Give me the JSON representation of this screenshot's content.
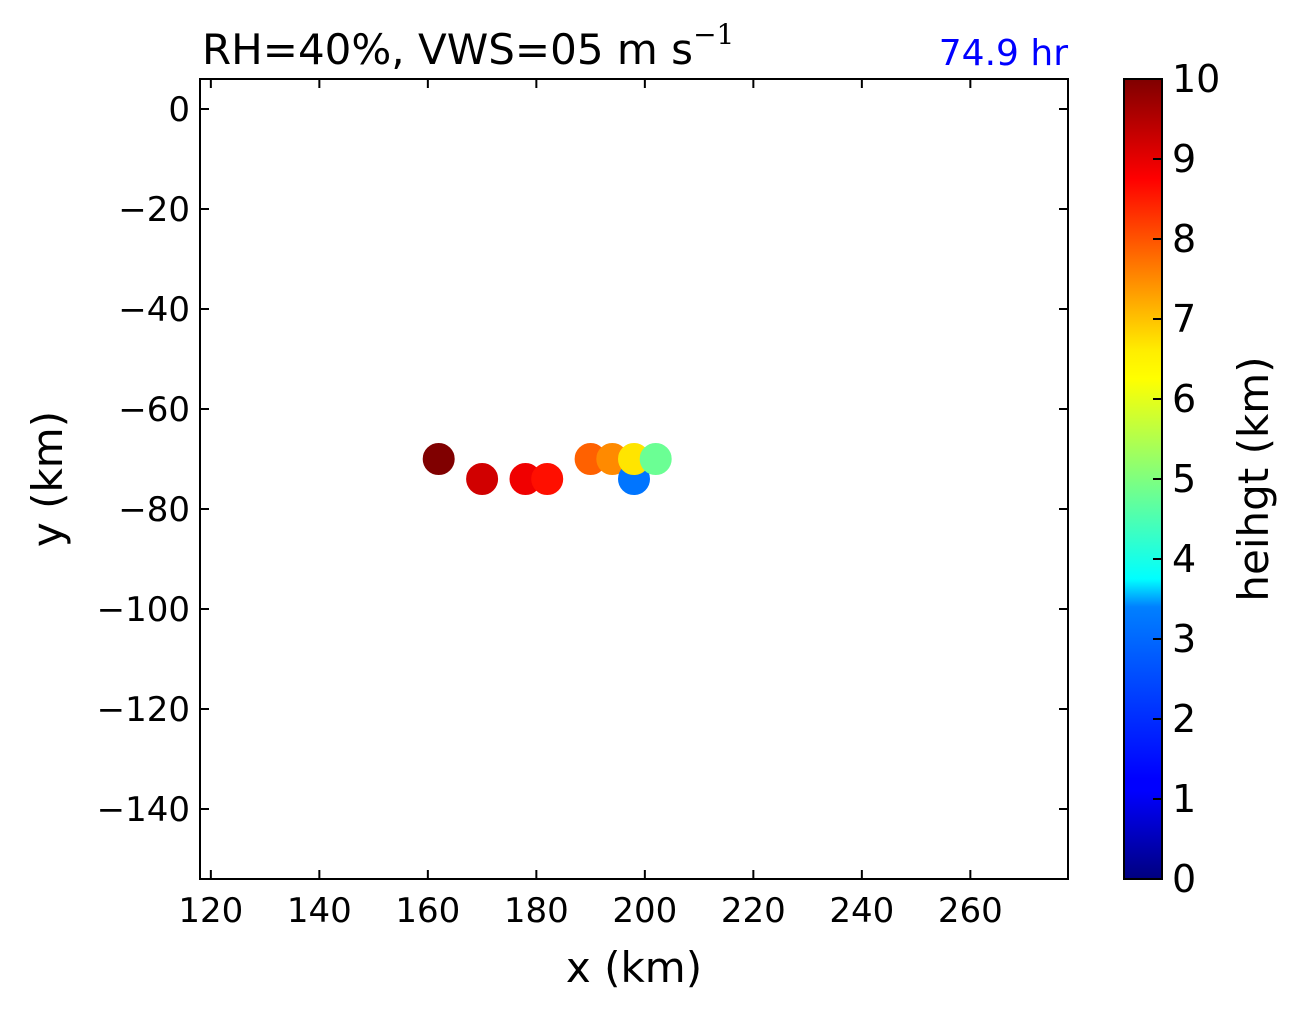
{
  "chart_data": {
    "type": "scatter",
    "title_main": "RH=40%, VWS=05 m s",
    "title_superscript": "−1",
    "time_label": "74.9 hr",
    "time_color": "#0000ff",
    "xlabel": "x (km)",
    "ylabel": "y (km)",
    "xlim": [
      118,
      278
    ],
    "ylim": [
      -154,
      6
    ],
    "xticks": [
      120,
      140,
      160,
      180,
      200,
      220,
      240,
      260
    ],
    "yticks": [
      0,
      -20,
      -40,
      -60,
      -80,
      -100,
      -120,
      -140
    ],
    "xtick_labels": [
      "120",
      "140",
      "160",
      "180",
      "200",
      "220",
      "240",
      "260"
    ],
    "ytick_labels": [
      "0",
      "−20",
      "−40",
      "−60",
      "−80",
      "−100",
      "−120",
      "−140"
    ],
    "colorbar": {
      "label": "heihgt (km)",
      "min": 0,
      "max": 10,
      "ticks": [
        0,
        1,
        2,
        3,
        4,
        5,
        6,
        7,
        8,
        9,
        10
      ],
      "tick_labels": [
        "0",
        "1",
        "2",
        "3",
        "4",
        "5",
        "6",
        "7",
        "8",
        "9",
        "10"
      ],
      "colormap": "jet"
    },
    "points": [
      {
        "x": 162,
        "y": -70,
        "z": 10.0
      },
      {
        "x": 170,
        "y": -74,
        "z": 9.2
      },
      {
        "x": 178,
        "y": -74,
        "z": 8.9
      },
      {
        "x": 182,
        "y": -74,
        "z": 8.6
      },
      {
        "x": 190,
        "y": -70,
        "z": 7.8
      },
      {
        "x": 194,
        "y": -70,
        "z": 7.4
      },
      {
        "x": 198,
        "y": -74,
        "z": 2.4
      },
      {
        "x": 198,
        "y": -70,
        "z": 6.5
      },
      {
        "x": 202,
        "y": -70,
        "z": 4.8
      }
    ]
  }
}
